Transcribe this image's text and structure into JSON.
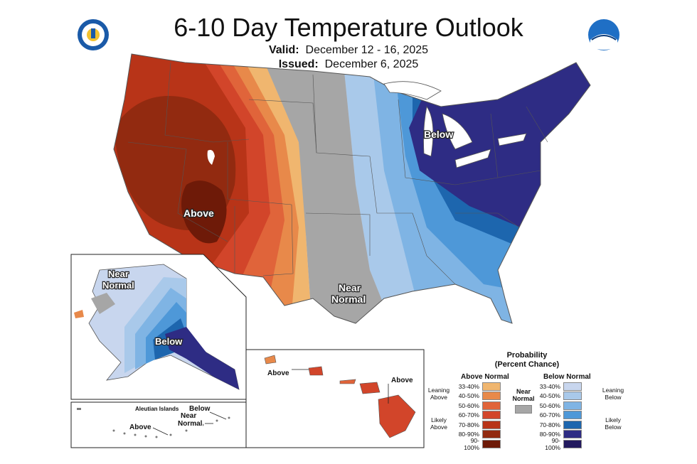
{
  "title": "6-10 Day Temperature Outlook",
  "valid_label": "Valid:",
  "valid_value": "December 12 - 16, 2025",
  "issued_label": "Issued:",
  "issued_value": "December 6, 2025",
  "logos": {
    "left": "department-of-commerce-seal",
    "right": "noaa-logo"
  },
  "map_labels": {
    "conus_above": "Above",
    "conus_below": "Below",
    "conus_near_1": "Near",
    "conus_near_2": "Normal",
    "ak_near_1": "Near",
    "ak_near_2": "Normal",
    "ak_below": "Below",
    "aleutian_title": "Aleutian Islands",
    "aleutian_above": "Above",
    "aleutian_below": "Below",
    "aleutian_near_1": "Near",
    "aleutian_near_2": "Normal",
    "hi_above_1": "Above",
    "hi_above_2": "Above"
  },
  "legend": {
    "title_1": "Probability",
    "title_2": "(Percent Chance)",
    "above_header": "Above Normal",
    "below_header": "Below Normal",
    "near_1": "Near",
    "near_2": "Normal",
    "leaning_above_1": "Leaning",
    "leaning_above_2": "Above",
    "likely_above_1": "Likely",
    "likely_above_2": "Above",
    "leaning_below_1": "Leaning",
    "leaning_below_2": "Below",
    "likely_below_1": "Likely",
    "likely_below_2": "Below",
    "above": [
      {
        "range": "33-40%",
        "color": "#f0b66f"
      },
      {
        "range": "40-50%",
        "color": "#e8894a"
      },
      {
        "range": "50-60%",
        "color": "#e0643a"
      },
      {
        "range": "60-70%",
        "color": "#d2452a"
      },
      {
        "range": "70-80%",
        "color": "#b83418"
      },
      {
        "range": "80-90%",
        "color": "#922a10"
      },
      {
        "range": "90-100%",
        "color": "#6e1a08"
      }
    ],
    "near_color": "#a6a6a6",
    "below": [
      {
        "range": "33-40%",
        "color": "#c8d6ee"
      },
      {
        "range": "40-50%",
        "color": "#a9c9ea"
      },
      {
        "range": "50-60%",
        "color": "#7fb4e4"
      },
      {
        "range": "60-70%",
        "color": "#4e98d8"
      },
      {
        "range": "70-80%",
        "color": "#1d66ae"
      },
      {
        "range": "80-90%",
        "color": "#2e2c84"
      },
      {
        "range": "90-100%",
        "color": "#22195e"
      }
    ]
  }
}
